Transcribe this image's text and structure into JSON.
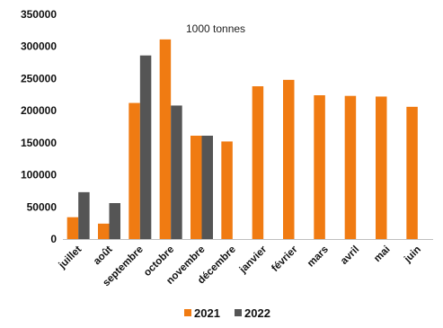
{
  "chart_data": {
    "type": "bar",
    "title": "",
    "annotation": "1000 tonnes",
    "xlabel": "",
    "ylabel": "",
    "categories": [
      "juillet",
      "août",
      "septembre",
      "octobre",
      "novembre",
      "décembre",
      "janvier",
      "février",
      "mars",
      "avril",
      "mai",
      "juin"
    ],
    "series": [
      {
        "name": "2021",
        "color": "#f07b12",
        "values": [
          34000,
          24000,
          212000,
          311000,
          161000,
          152000,
          238000,
          248000,
          224000,
          223000,
          222000,
          206000
        ]
      },
      {
        "name": "2022",
        "color": "#555555",
        "values": [
          73000,
          56000,
          286000,
          208000,
          161000,
          null,
          null,
          null,
          null,
          null,
          null,
          null
        ]
      }
    ],
    "ylim": [
      0,
      350000
    ],
    "yticks": [
      0,
      50000,
      100000,
      150000,
      200000,
      250000,
      300000,
      350000
    ],
    "ytick_labels": [
      "0",
      "50000",
      "100000",
      "150000",
      "200000",
      "250000",
      "300000",
      "350000"
    ],
    "grid": false,
    "legend_position": "bottom"
  }
}
